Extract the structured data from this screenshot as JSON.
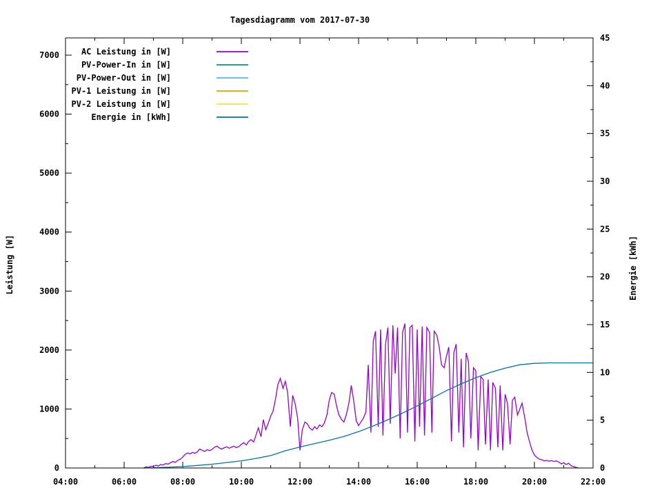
{
  "window": {
    "background_color": "#ffffff",
    "foreground_color": "#000000"
  },
  "chart_data": {
    "type": "line",
    "title": "Tagesdiagramm vom 2017-07-30",
    "grid": false,
    "x_axis": {
      "label": "",
      "tick_labels": [
        "04:00",
        "06:00",
        "08:00",
        "10:00",
        "12:00",
        "14:00",
        "16:00",
        "18:00",
        "20:00",
        "22:00"
      ],
      "range_hours": [
        4,
        22
      ],
      "major_tick_hours": 2,
      "minor_tick_hours": 1
    },
    "y_left_axis": {
      "label": "Leistung [W]",
      "ticks": [
        0,
        1000,
        2000,
        3000,
        4000,
        5000,
        6000,
        7000
      ],
      "range": [
        0,
        7300
      ],
      "minor_tick": 500
    },
    "y_right_axis": {
      "label": "Energie [kWh]",
      "ticks": [
        0,
        5,
        10,
        15,
        20,
        25,
        30,
        35,
        40,
        45
      ],
      "range": [
        0,
        45
      ],
      "minor_tick": 2.5
    },
    "legend": {
      "position": "top-left",
      "box": false
    },
    "series": [
      {
        "name": "AC Leistung in [W]",
        "color": "#9400D3",
        "axis": "left",
        "visible": true,
        "points": [
          [
            6.67,
            0
          ],
          [
            6.75,
            20
          ],
          [
            6.83,
            10
          ],
          [
            6.92,
            30
          ],
          [
            7.0,
            25
          ],
          [
            7.08,
            45
          ],
          [
            7.17,
            35
          ],
          [
            7.25,
            60
          ],
          [
            7.33,
            50
          ],
          [
            7.42,
            75
          ],
          [
            7.5,
            65
          ],
          [
            7.58,
            90
          ],
          [
            7.67,
            110
          ],
          [
            7.75,
            95
          ],
          [
            7.83,
            130
          ],
          [
            7.92,
            150
          ],
          [
            8.0,
            185
          ],
          [
            8.08,
            230
          ],
          [
            8.17,
            255
          ],
          [
            8.25,
            240
          ],
          [
            8.33,
            265
          ],
          [
            8.42,
            250
          ],
          [
            8.5,
            275
          ],
          [
            8.58,
            320
          ],
          [
            8.67,
            300
          ],
          [
            8.75,
            280
          ],
          [
            8.83,
            310
          ],
          [
            8.92,
            295
          ],
          [
            9.0,
            315
          ],
          [
            9.08,
            350
          ],
          [
            9.17,
            370
          ],
          [
            9.25,
            340
          ],
          [
            9.33,
            320
          ],
          [
            9.42,
            345
          ],
          [
            9.5,
            360
          ],
          [
            9.58,
            335
          ],
          [
            9.67,
            355
          ],
          [
            9.75,
            370
          ],
          [
            9.83,
            345
          ],
          [
            9.92,
            365
          ],
          [
            10.0,
            400
          ],
          [
            10.08,
            430
          ],
          [
            10.17,
            390
          ],
          [
            10.25,
            450
          ],
          [
            10.33,
            480
          ],
          [
            10.42,
            440
          ],
          [
            10.5,
            560
          ],
          [
            10.58,
            680
          ],
          [
            10.67,
            530
          ],
          [
            10.75,
            820
          ],
          [
            10.83,
            650
          ],
          [
            10.92,
            760
          ],
          [
            11.0,
            880
          ],
          [
            11.08,
            960
          ],
          [
            11.17,
            1180
          ],
          [
            11.25,
            1420
          ],
          [
            11.33,
            1520
          ],
          [
            11.42,
            1350
          ],
          [
            11.5,
            1470
          ],
          [
            11.58,
            1280
          ],
          [
            11.67,
            700
          ],
          [
            11.75,
            1230
          ],
          [
            11.83,
            1100
          ],
          [
            11.92,
            850
          ],
          [
            12.0,
            300
          ],
          [
            12.08,
            650
          ],
          [
            12.17,
            780
          ],
          [
            12.25,
            750
          ],
          [
            12.33,
            680
          ],
          [
            12.42,
            640
          ],
          [
            12.5,
            700
          ],
          [
            12.58,
            660
          ],
          [
            12.67,
            730
          ],
          [
            12.75,
            700
          ],
          [
            12.83,
            760
          ],
          [
            12.92,
            900
          ],
          [
            13.0,
            1150
          ],
          [
            13.08,
            1280
          ],
          [
            13.17,
            1250
          ],
          [
            13.25,
            1050
          ],
          [
            13.33,
            900
          ],
          [
            13.42,
            820
          ],
          [
            13.5,
            780
          ],
          [
            13.58,
            900
          ],
          [
            13.67,
            1100
          ],
          [
            13.75,
            1400
          ],
          [
            13.83,
            1150
          ],
          [
            13.92,
            800
          ],
          [
            14.0,
            720
          ],
          [
            14.08,
            780
          ],
          [
            14.17,
            850
          ],
          [
            14.25,
            950
          ],
          [
            14.33,
            1750
          ],
          [
            14.42,
            600
          ],
          [
            14.5,
            2150
          ],
          [
            14.58,
            2320
          ],
          [
            14.67,
            700
          ],
          [
            14.75,
            2350
          ],
          [
            14.83,
            550
          ],
          [
            14.92,
            2100
          ],
          [
            15.0,
            2380
          ],
          [
            15.08,
            750
          ],
          [
            15.17,
            2420
          ],
          [
            15.25,
            1600
          ],
          [
            15.33,
            2380
          ],
          [
            15.42,
            500
          ],
          [
            15.5,
            2300
          ],
          [
            15.58,
            2450
          ],
          [
            15.67,
            600
          ],
          [
            15.75,
            2380
          ],
          [
            15.83,
            2420
          ],
          [
            15.92,
            450
          ],
          [
            16.0,
            2350
          ],
          [
            16.08,
            700
          ],
          [
            16.17,
            2400
          ],
          [
            16.25,
            550
          ],
          [
            16.33,
            2380
          ],
          [
            16.42,
            2300
          ],
          [
            16.5,
            600
          ],
          [
            16.58,
            2320
          ],
          [
            16.67,
            2250
          ],
          [
            16.75,
            2050
          ],
          [
            16.83,
            1750
          ],
          [
            16.92,
            1700
          ],
          [
            17.0,
            1900
          ],
          [
            17.08,
            2050
          ],
          [
            17.17,
            450
          ],
          [
            17.25,
            1950
          ],
          [
            17.33,
            2100
          ],
          [
            17.42,
            600
          ],
          [
            17.5,
            1850
          ],
          [
            17.58,
            350
          ],
          [
            17.67,
            1950
          ],
          [
            17.75,
            1800
          ],
          [
            17.83,
            500
          ],
          [
            17.92,
            1700
          ],
          [
            18.0,
            1650
          ],
          [
            18.08,
            300
          ],
          [
            18.17,
            1550
          ],
          [
            18.25,
            1500
          ],
          [
            18.33,
            400
          ],
          [
            18.42,
            1500
          ],
          [
            18.5,
            300
          ],
          [
            18.58,
            1450
          ],
          [
            18.67,
            1350
          ],
          [
            18.75,
            350
          ],
          [
            18.83,
            1400
          ],
          [
            18.92,
            300
          ],
          [
            19.0,
            1250
          ],
          [
            19.08,
            1100
          ],
          [
            19.17,
            400
          ],
          [
            19.25,
            1150
          ],
          [
            19.33,
            1200
          ],
          [
            19.42,
            900
          ],
          [
            19.5,
            1000
          ],
          [
            19.58,
            1100
          ],
          [
            19.67,
            850
          ],
          [
            19.75,
            600
          ],
          [
            19.83,
            450
          ],
          [
            19.92,
            300
          ],
          [
            20.0,
            220
          ],
          [
            20.08,
            180
          ],
          [
            20.17,
            150
          ],
          [
            20.25,
            140
          ],
          [
            20.33,
            120
          ],
          [
            20.42,
            130
          ],
          [
            20.5,
            115
          ],
          [
            20.58,
            125
          ],
          [
            20.67,
            110
          ],
          [
            20.75,
            120
          ],
          [
            20.83,
            100
          ],
          [
            20.92,
            70
          ],
          [
            21.0,
            90
          ],
          [
            21.08,
            60
          ],
          [
            21.17,
            80
          ],
          [
            21.25,
            40
          ],
          [
            21.33,
            25
          ],
          [
            21.42,
            10
          ],
          [
            21.5,
            0
          ]
        ]
      },
      {
        "name": "PV-Power-In in [W]",
        "color": "#009E73",
        "axis": "left",
        "visible": false,
        "points": []
      },
      {
        "name": "PV-Power-Out in [W]",
        "color": "#56B4E9",
        "axis": "left",
        "visible": false,
        "points": []
      },
      {
        "name": "PV-1 Leistung in [W]",
        "color": "#E69F00",
        "axis": "left",
        "visible": false,
        "points": []
      },
      {
        "name": "PV-2 Leistung in [W]",
        "color": "#F0E442",
        "axis": "left",
        "visible": false,
        "points": []
      },
      {
        "name": "Energie in [kWh]",
        "color": "#0072B2",
        "axis": "right",
        "visible": true,
        "points": [
          [
            6.67,
            0
          ],
          [
            7.0,
            0.03
          ],
          [
            7.5,
            0.08
          ],
          [
            8.0,
            0.15
          ],
          [
            8.5,
            0.27
          ],
          [
            9.0,
            0.4
          ],
          [
            9.5,
            0.57
          ],
          [
            10.0,
            0.75
          ],
          [
            10.5,
            1.0
          ],
          [
            11.0,
            1.3
          ],
          [
            11.5,
            1.8
          ],
          [
            12.0,
            2.2
          ],
          [
            12.5,
            2.55
          ],
          [
            13.0,
            2.9
          ],
          [
            13.5,
            3.3
          ],
          [
            14.0,
            3.8
          ],
          [
            14.5,
            4.4
          ],
          [
            15.0,
            5.05
          ],
          [
            15.5,
            5.75
          ],
          [
            16.0,
            6.5
          ],
          [
            16.5,
            7.3
          ],
          [
            17.0,
            8.1
          ],
          [
            17.5,
            8.8
          ],
          [
            18.0,
            9.45
          ],
          [
            18.5,
            10.0
          ],
          [
            19.0,
            10.45
          ],
          [
            19.5,
            10.8
          ],
          [
            20.0,
            10.95
          ],
          [
            20.5,
            11.0
          ],
          [
            21.0,
            11.0
          ],
          [
            21.5,
            11.0
          ],
          [
            22.0,
            11.0
          ]
        ]
      }
    ]
  }
}
